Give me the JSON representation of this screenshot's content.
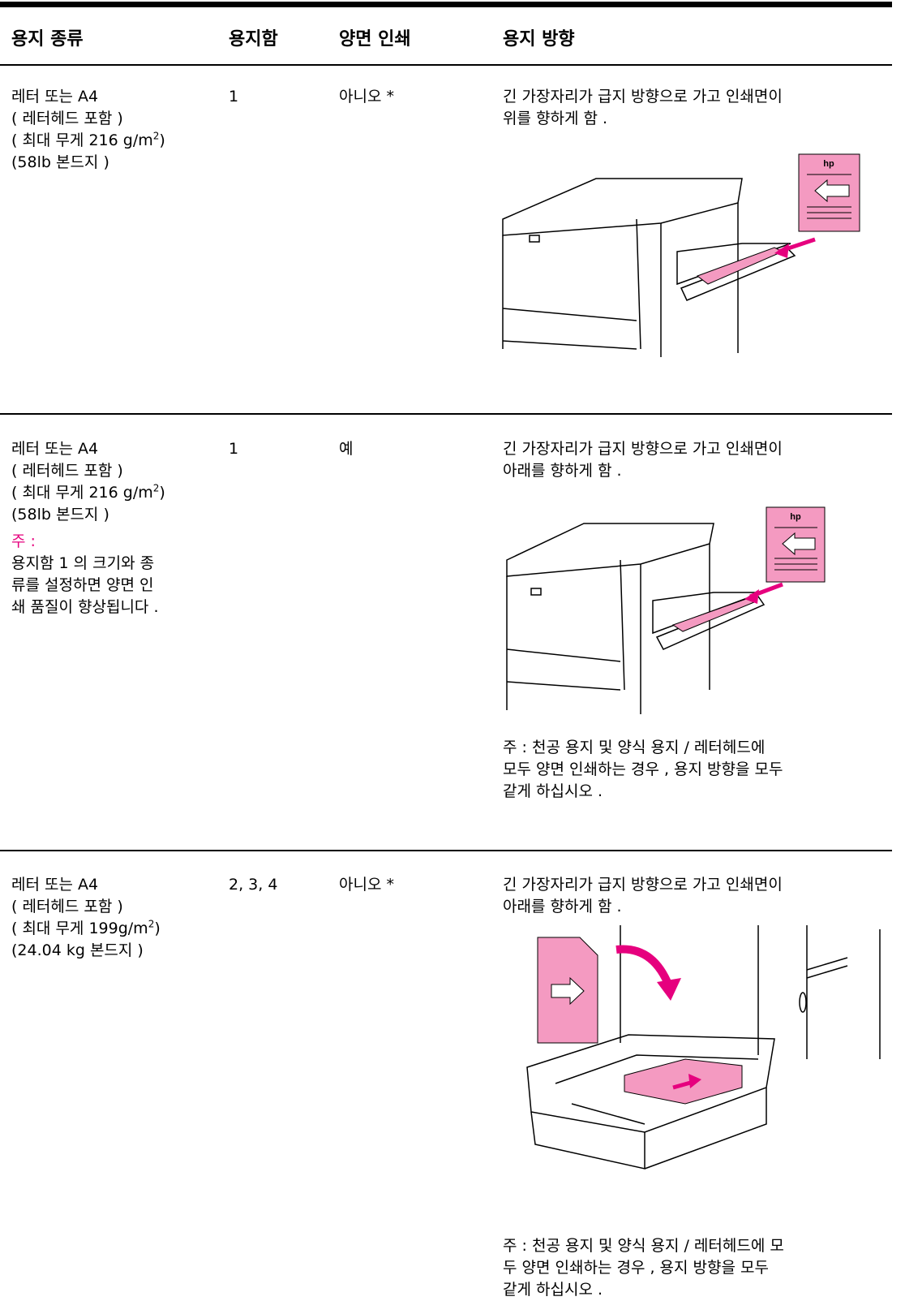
{
  "header": {
    "columns": [
      "용지 종류",
      "용지함",
      "양면 인쇄",
      "용지 방향"
    ]
  },
  "rows": [
    {
      "paper_type": [
        "레터 또는 A4",
        "( 레터헤드 포함 )",
        {
          "text": "( 최대 무게 216 g/m",
          "sup": "2",
          "tail": ")"
        },
        "(58lb 본드지 )"
      ],
      "tray": "1",
      "duplex": "아니오 *",
      "orientation": [
        "긴 가장자리가 급지 방향으로 가고 인쇄면이",
        "위를 향하게 함 ."
      ],
      "logo": "hp"
    },
    {
      "paper_type": [
        "레터 또는 A4",
        "( 레터헤드 포함 )",
        {
          "text": "( 최대 무게 216 g/m",
          "sup": "2",
          "tail": ")"
        },
        "(58lb 본드지 )"
      ],
      "note_label": "주 :",
      "note": [
        "용지함 1 의 크기와 종",
        "류를 설정하면 양면 인",
        "쇄 품질이 향상됩니다 ."
      ],
      "tray": "1",
      "duplex": "예",
      "orientation": [
        "긴 가장자리가 급지 방향으로 가고 인쇄면이",
        "아래를 향하게 함 ."
      ],
      "logo": "hp",
      "orientation_note": [
        "주 : 천공 용지 및 양식 용지 / 레터헤드에",
        "모두 양면 인쇄하는 경우 , 용지 방향을 모두",
        "같게 하십시오 ."
      ]
    },
    {
      "paper_type": [
        "레터 또는 A4",
        "( 레터헤드 포함 )",
        {
          "text": "( 최대 무게 199g/m",
          "sup": "2",
          "tail": ")"
        },
        "(24.04 kg 본드지 )"
      ],
      "tray": "2, 3, 4",
      "duplex": "아니오 *",
      "orientation": [
        "긴 가장자리가 급지 방향으로 가고 인쇄면이",
        "아래를 향하게 함 ."
      ],
      "orientation_note": [
        "주 : 천공 용지 및 양식 용지 / 레터헤드에 모",
        "두 양면 인쇄하는 경우 , 용지 방향을 모두",
        "같게 하십시오 ."
      ]
    }
  ]
}
